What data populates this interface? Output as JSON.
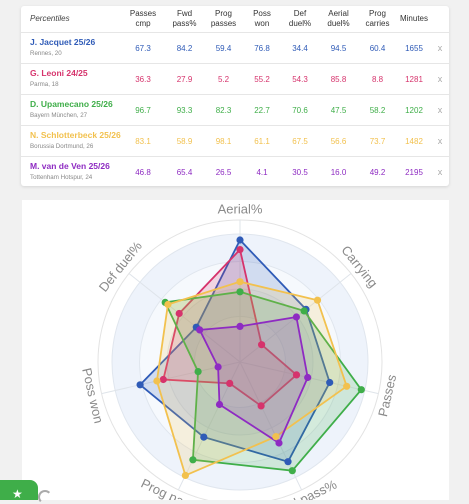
{
  "table": {
    "headers": [
      "Percentiles",
      "Passes cmp",
      "Fwd pass%",
      "Prog passes",
      "Poss won",
      "Def duel%",
      "Aerial duel%",
      "Prog carries",
      "Minutes",
      ""
    ],
    "header_lines": [
      [
        "Percentiles"
      ],
      [
        "Passes",
        "cmp"
      ],
      [
        "Fwd",
        "pass%"
      ],
      [
        "Prog",
        "passes"
      ],
      [
        "Poss",
        "won"
      ],
      [
        "Def",
        "duel%"
      ],
      [
        "Aerial",
        "duel%"
      ],
      [
        "Prog",
        "carries"
      ],
      [
        "Minutes"
      ],
      [
        ""
      ]
    ],
    "remove_label": "x",
    "players": [
      {
        "name": "J. Jacquet",
        "season": "25/26",
        "club": "Rennes, 20",
        "color": "#2f5bb7",
        "values": [
          "67.3",
          "84.2",
          "59.4",
          "76.8",
          "34.4",
          "94.5",
          "60.4",
          "1655"
        ]
      },
      {
        "name": "G. Leoni",
        "season": "24/25",
        "club": "Parma, 18",
        "color": "#d6336c",
        "values": [
          "36.3",
          "27.9",
          "5.2",
          "55.2",
          "54.3",
          "85.8",
          "8.8",
          "1281"
        ]
      },
      {
        "name": "D. Upamecano",
        "season": "25/26",
        "club": "Bayern München, 27",
        "color": "#3fae49",
        "values": [
          "96.7",
          "93.3",
          "82.3",
          "22.7",
          "70.6",
          "47.5",
          "58.2",
          "1202"
        ]
      },
      {
        "name": "N. Schlotterbeck",
        "season": "25/26",
        "club": "Borussia Dortmund, 26",
        "color": "#f2c14e",
        "values": [
          "83.1",
          "58.9",
          "98.1",
          "61.1",
          "67.5",
          "56.6",
          "73.7",
          "1482"
        ]
      },
      {
        "name": "M. van de Ven",
        "season": "25/26",
        "club": "Tottenham Hotspur, 24",
        "color": "#8e2bc2",
        "values": [
          "46.8",
          "65.4",
          "26.5",
          "4.1",
          "30.5",
          "16.0",
          "49.2",
          "2195"
        ]
      }
    ]
  },
  "radar": {
    "axes": [
      "Aerial%",
      "Carrying",
      "Passes",
      "Fwd pass%",
      "Prog passes",
      "Poss won",
      "Def duel%"
    ],
    "series": [
      {
        "color": "#2f5bb7",
        "values": [
          94.5,
          60.4,
          67.3,
          84.2,
          59.4,
          76.8,
          34.4
        ]
      },
      {
        "color": "#d6336c",
        "values": [
          85.8,
          8.8,
          36.3,
          27.9,
          5.2,
          55.2,
          54.3
        ]
      },
      {
        "color": "#3fae49",
        "values": [
          47.5,
          58.2,
          96.7,
          93.3,
          82.3,
          22.7,
          70.6
        ]
      },
      {
        "color": "#f2c14e",
        "values": [
          56.6,
          73.7,
          83.1,
          58.9,
          98.1,
          61.1,
          67.5
        ]
      },
      {
        "color": "#8e2bc2",
        "values": [
          16.0,
          49.2,
          46.8,
          65.4,
          26.5,
          4.1,
          30.5
        ]
      }
    ]
  },
  "footer": {
    "fab_icon": "star-icon"
  }
}
